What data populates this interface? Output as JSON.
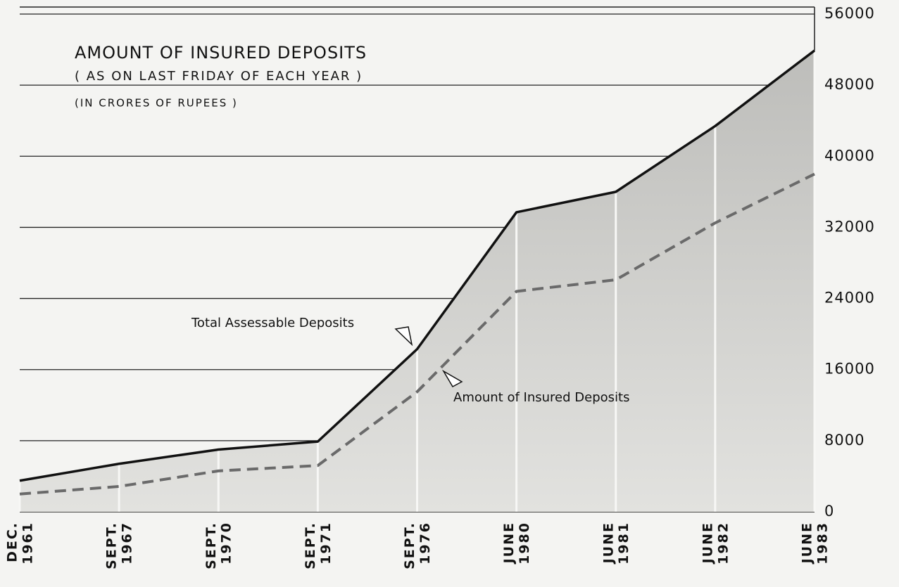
{
  "chart_data": {
    "type": "line",
    "title": "AMOUNT OF INSURED DEPOSITS",
    "subtitle": "( AS ON LAST FRIDAY OF EACH YEAR )",
    "note": "(IN CRORES OF RUPEES )",
    "categories": [
      "DEC. 1961",
      "SEPT. 1967",
      "SEPT. 1970",
      "SEPT. 1971",
      "SEPT. 1976",
      "JUNE 1980",
      "JUNE 1981",
      "JUNE 1982",
      "JUNE 1983"
    ],
    "series": [
      {
        "name": "Total Assessable Deposits",
        "color": "#111111",
        "fill": "#c9c9c6",
        "values": [
          3500,
          5400,
          7000,
          7900,
          18300,
          33700,
          36000,
          43400,
          51900
        ]
      },
      {
        "name": "Amount of Insured Deposits",
        "color": "#6a6a6a",
        "dashed": true,
        "values": [
          2000,
          2850,
          4600,
          5200,
          13500,
          24800,
          26100,
          32500,
          38000
        ]
      }
    ],
    "ylim": [
      0,
      56000
    ],
    "yticks": [
      0,
      8000,
      16000,
      24000,
      32000,
      40000,
      48000,
      56000
    ],
    "grid": true,
    "y_axis_side": "right"
  }
}
